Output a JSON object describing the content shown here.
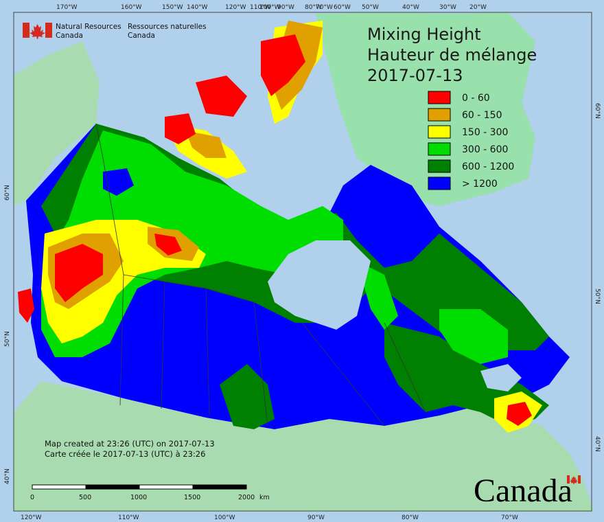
{
  "agency": {
    "name_en_line1": "Natural Resources",
    "name_en_line2": "Canada",
    "name_fr_line1": "Ressources naturelles",
    "name_fr_line2": "Canada"
  },
  "title": {
    "line1": "Mixing Height",
    "line2": "Hauteur de mélange",
    "date": "2017-07-13"
  },
  "legend": {
    "items": [
      {
        "label": "0 - 60",
        "color": "#ff0000"
      },
      {
        "label": "60 - 150",
        "color": "#e0a000"
      },
      {
        "label": "150 - 300",
        "color": "#ffff00"
      },
      {
        "label": "300 - 600",
        "color": "#00dd00"
      },
      {
        "label": "600 - 1200",
        "color": "#008000"
      },
      {
        "label": "> 1200",
        "color": "#0000ff"
      }
    ]
  },
  "credit": {
    "line_en": "Map created at 23:26 (UTC) on 2017-07-13",
    "line_fr": "Carte créée le 2017-07-13 (UTC) à 23:26"
  },
  "scale_bar": {
    "ticks": [
      "0",
      "500",
      "1000",
      "1500",
      "2000"
    ],
    "unit": "km"
  },
  "wordmark": "Canada",
  "graticule": {
    "top": [
      "170°W",
      "160°W",
      "150°W",
      "140°W",
      "120°W",
      "110°W",
      "100°W",
      "90°W",
      "80°W",
      "70°W",
      "60°W",
      "50°W",
      "40°W",
      "30°W",
      "20°W"
    ],
    "bottom": [
      "120°W",
      "110°W",
      "100°W",
      "90°W",
      "80°W",
      "70°W"
    ],
    "left": [
      "60°N",
      "50°N",
      "40°N"
    ],
    "right": [
      "60°N",
      "50°N",
      "40°N"
    ]
  },
  "colors": {
    "ocean": "#b0d0ec",
    "land_outside": "#a8dcb0",
    "greenland": "#98e0ac"
  }
}
